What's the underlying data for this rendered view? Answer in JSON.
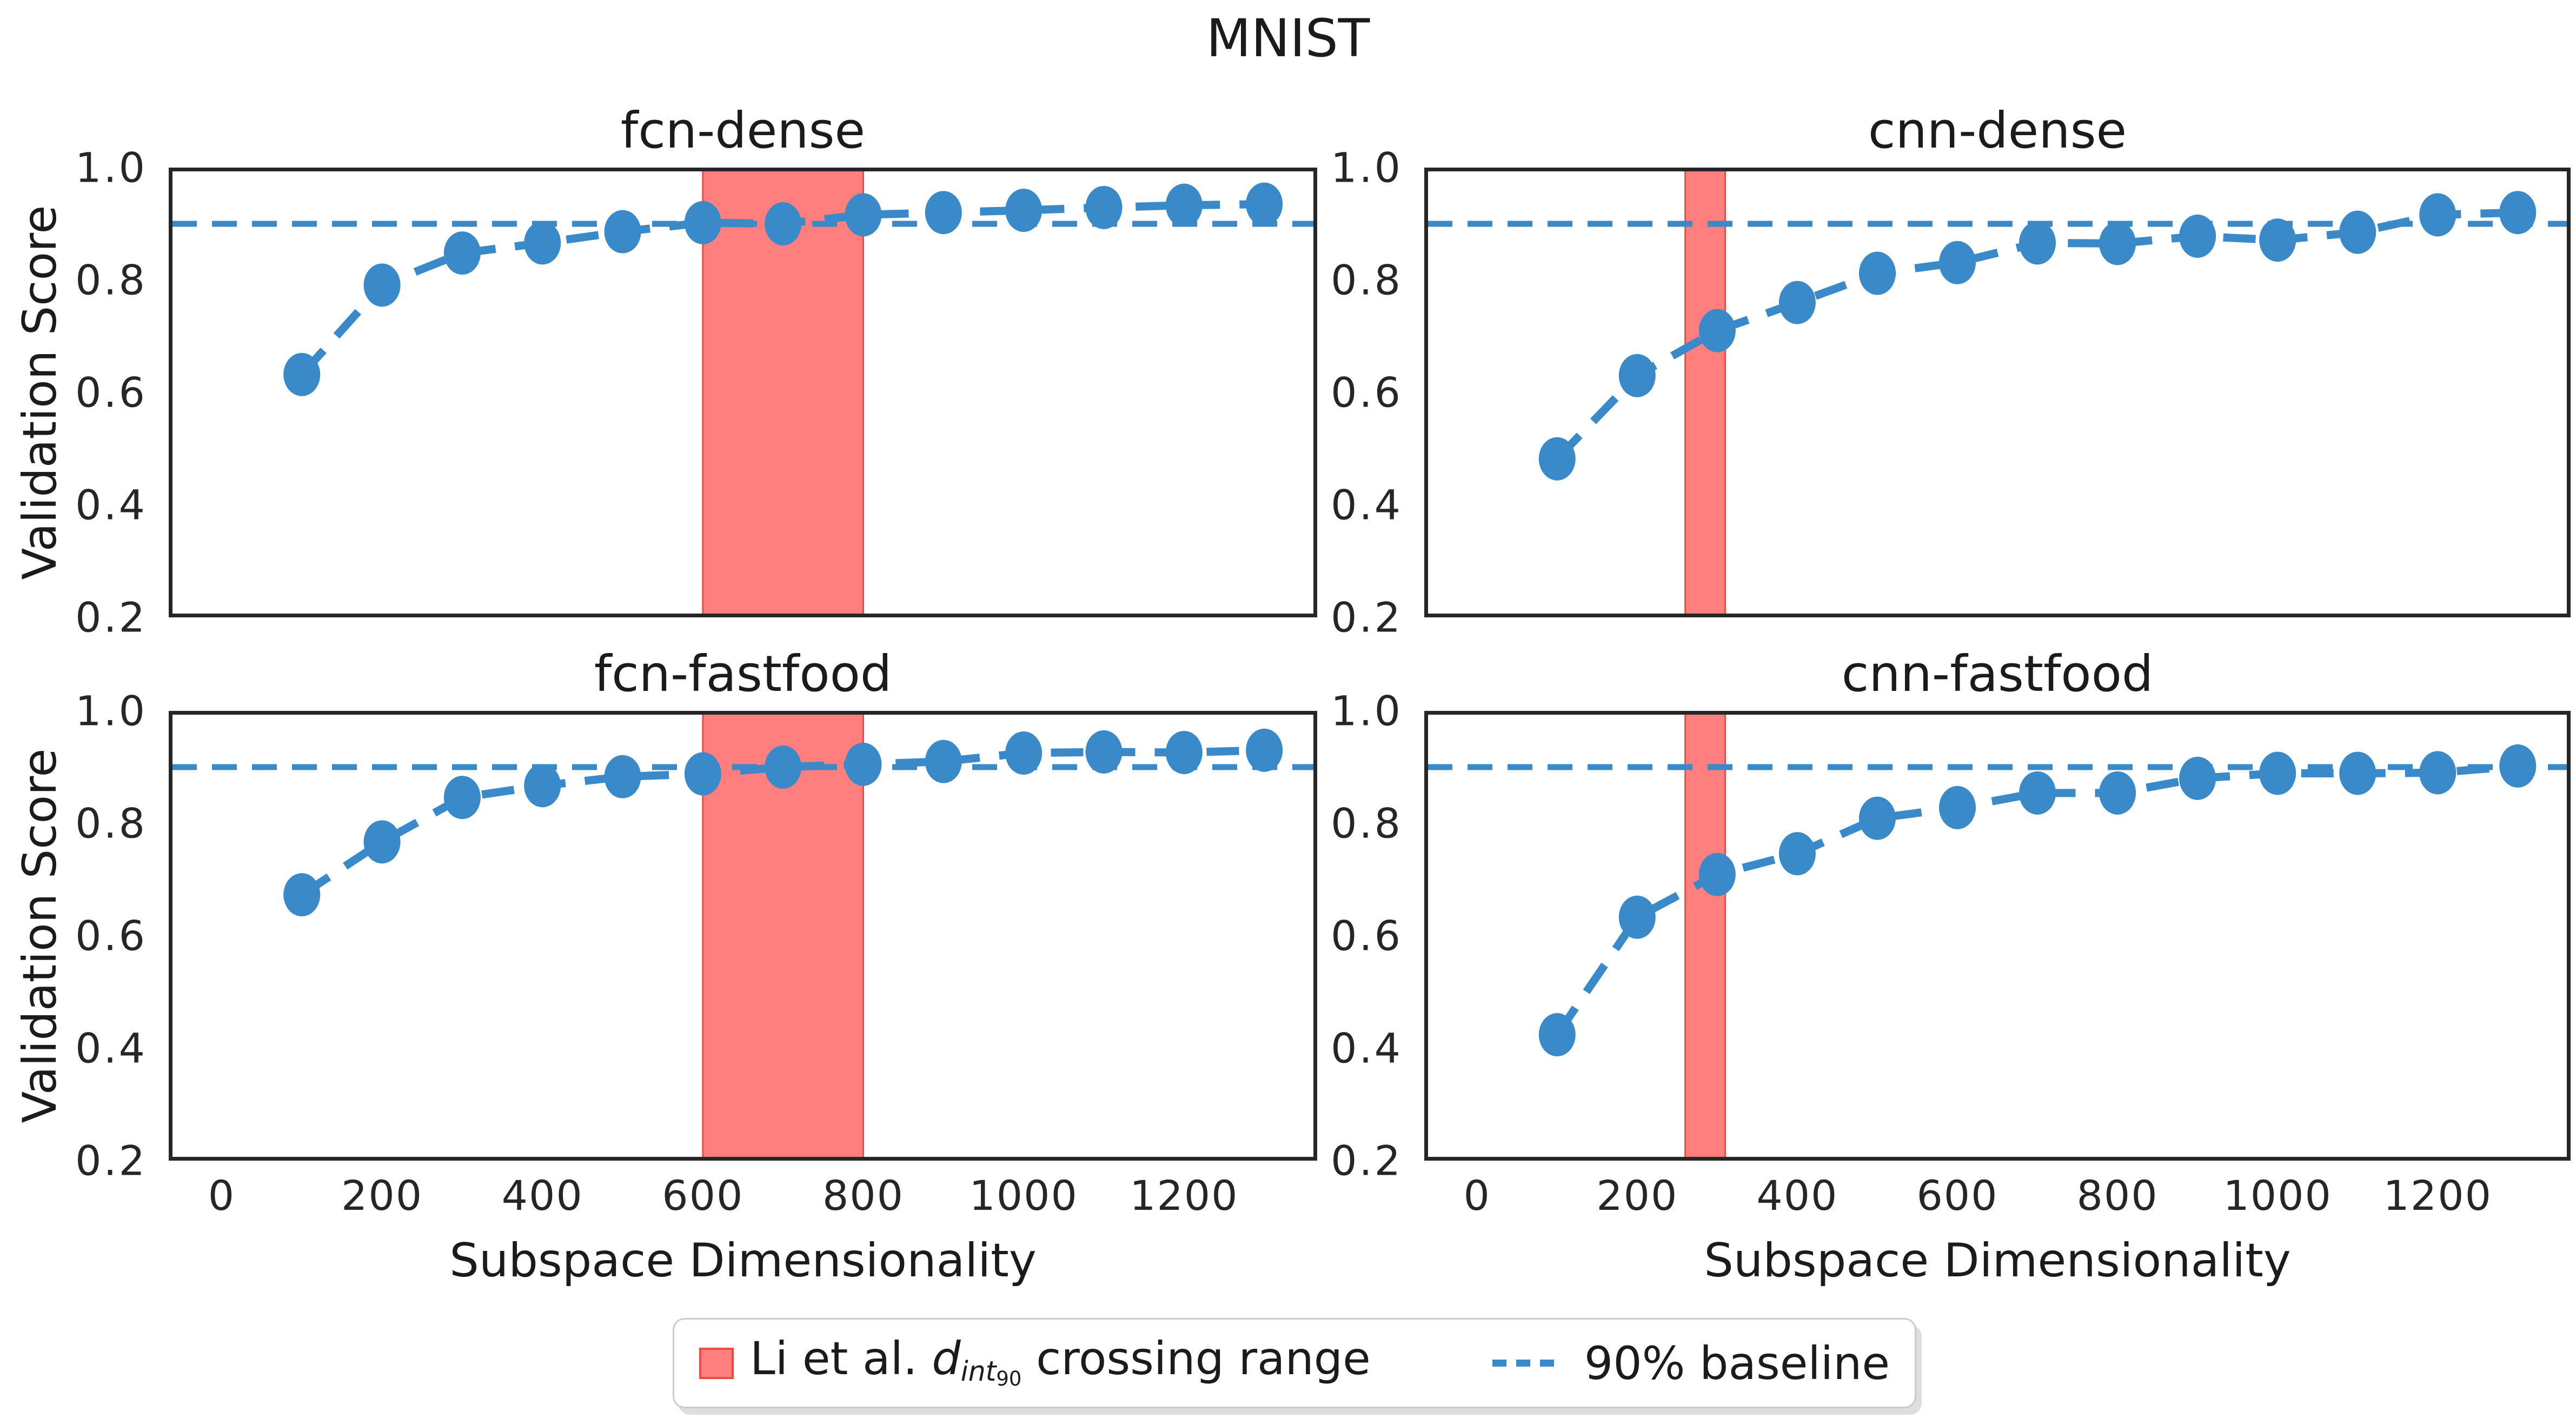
{
  "figure": {
    "title": "MNIST"
  },
  "axes": {
    "ylabel": "Validation Score",
    "xlabel": "Subspace Dimensionality",
    "y_tick_labels": [
      "1.0",
      "0.8",
      "0.6",
      "0.4",
      "0.2"
    ],
    "y_tick_values": [
      1.0,
      0.8,
      0.6,
      0.4,
      0.2
    ],
    "x_tick_values": [
      0,
      200,
      400,
      600,
      800,
      1000,
      1200
    ]
  },
  "legend": {
    "band_label_prefix": "Li et al. ",
    "band_label_d": "d",
    "band_label_sub": "int",
    "band_label_subsub": "90",
    "band_label_suffix": " crossing range",
    "baseline_label": "90% baseline"
  },
  "colors": {
    "blue": "#3A8AC9",
    "band_fill": "#FF7F7F",
    "band_edge": "#EF4A44",
    "frame": "#262626",
    "text": "#1B1B1B"
  },
  "chart_data": [
    {
      "type": "line",
      "title": "fcn-dense",
      "x": [
        100,
        200,
        300,
        400,
        500,
        600,
        700,
        800,
        900,
        1000,
        1100,
        1200,
        1300
      ],
      "y": [
        0.632,
        0.791,
        0.848,
        0.866,
        0.886,
        0.902,
        0.9,
        0.916,
        0.92,
        0.924,
        0.929,
        0.933,
        0.935
      ],
      "baseline": 0.9,
      "band_x": [
        600,
        800
      ],
      "xlim": [
        -66,
        1366
      ],
      "ylim": [
        0.2,
        1.0
      ],
      "grid": false
    },
    {
      "type": "line",
      "title": "cnn-dense",
      "x": [
        100,
        200,
        300,
        400,
        500,
        600,
        700,
        800,
        900,
        1000,
        1100,
        1200,
        1300
      ],
      "y": [
        0.482,
        0.63,
        0.71,
        0.76,
        0.812,
        0.831,
        0.866,
        0.865,
        0.878,
        0.871,
        0.885,
        0.916,
        0.92
      ],
      "baseline": 0.9,
      "band_x": [
        260,
        310
      ],
      "xlim": [
        -66,
        1366
      ],
      "ylim": [
        0.2,
        1.0
      ],
      "grid": false
    },
    {
      "type": "line",
      "title": "fcn-fastfood",
      "x": [
        100,
        200,
        300,
        400,
        500,
        600,
        700,
        800,
        900,
        1000,
        1100,
        1200,
        1300
      ],
      "y": [
        0.673,
        0.767,
        0.846,
        0.867,
        0.883,
        0.888,
        0.9,
        0.905,
        0.91,
        0.925,
        0.927,
        0.926,
        0.93
      ],
      "baseline": 0.9,
      "band_x": [
        600,
        800
      ],
      "xlim": [
        -66,
        1366
      ],
      "ylim": [
        0.2,
        1.0
      ],
      "grid": false
    },
    {
      "type": "line",
      "title": "cnn-fastfood",
      "x": [
        100,
        200,
        300,
        400,
        500,
        600,
        700,
        800,
        900,
        1000,
        1100,
        1200,
        1300
      ],
      "y": [
        0.424,
        0.633,
        0.709,
        0.746,
        0.809,
        0.828,
        0.854,
        0.854,
        0.88,
        0.889,
        0.889,
        0.89,
        0.902
      ],
      "baseline": 0.9,
      "band_x": [
        260,
        310
      ],
      "xlim": [
        -66,
        1366
      ],
      "ylim": [
        0.2,
        1.0
      ],
      "grid": false
    }
  ]
}
